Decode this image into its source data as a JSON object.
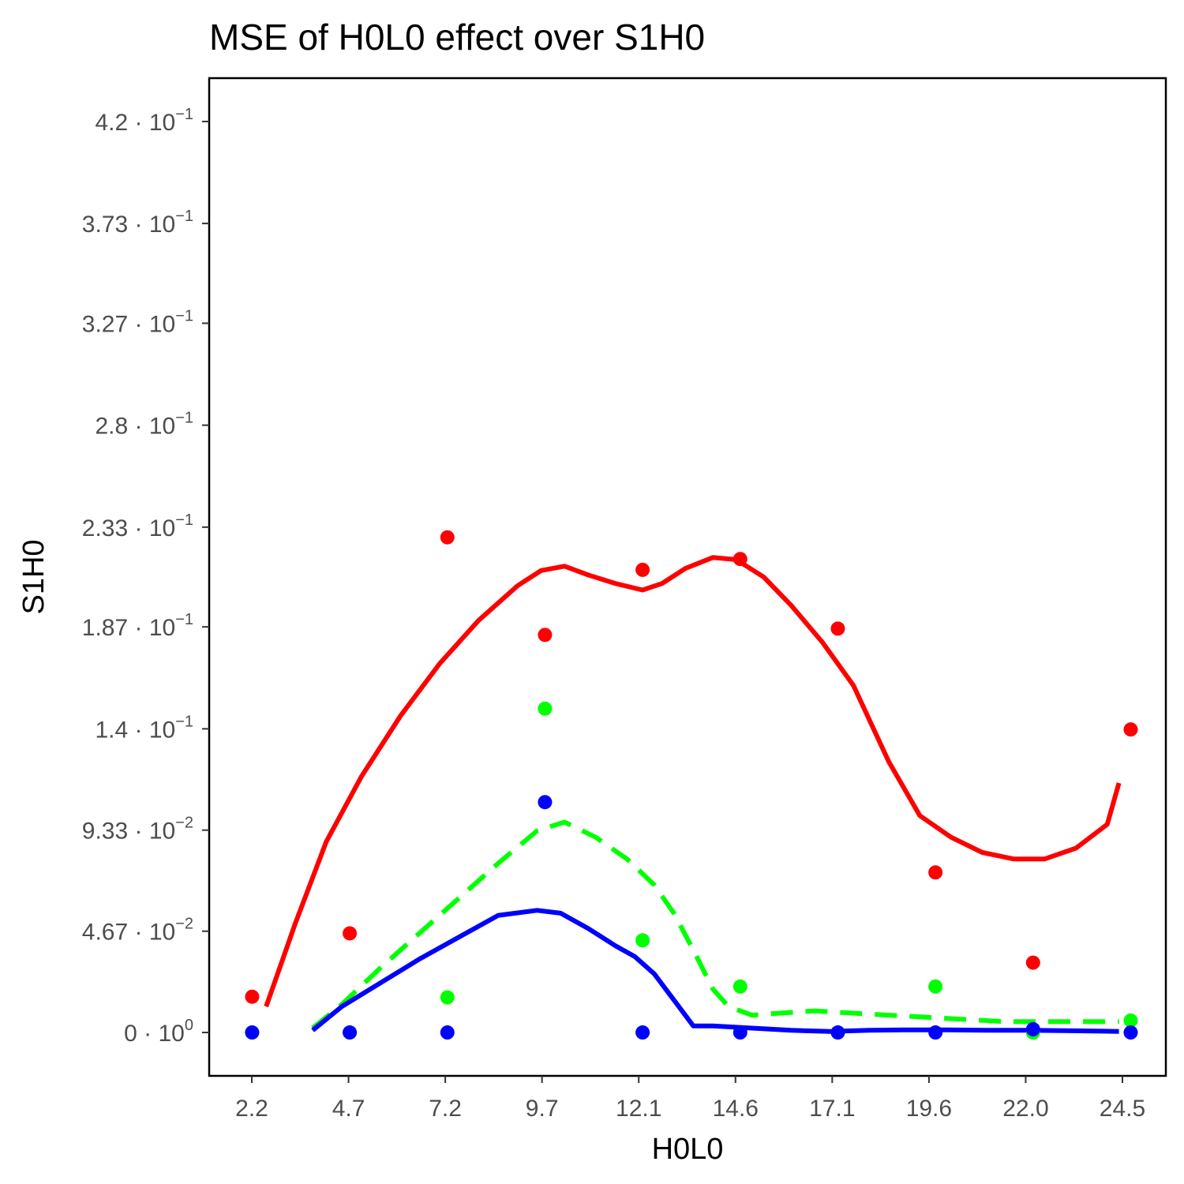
{
  "chart_data": {
    "type": "line",
    "title": "MSE of H0L0 effect over  S1H0",
    "xlabel": "H0L0",
    "ylabel": "S1H0",
    "x_ticks": [
      "2.2",
      "4.7",
      "7.2",
      "9.7",
      "12.1",
      "14.6",
      "17.1",
      "19.6",
      "22.0",
      "24.5"
    ],
    "y_ticks": [
      {
        "value": 0,
        "mantissa": "0",
        "exponent": "0"
      },
      {
        "value": 0.0467,
        "mantissa": "4.67",
        "exponent": "−2"
      },
      {
        "value": 0.0933,
        "mantissa": "9.33",
        "exponent": "−2"
      },
      {
        "value": 0.14,
        "mantissa": "1.4",
        "exponent": "−1"
      },
      {
        "value": 0.187,
        "mantissa": "1.87",
        "exponent": "−1"
      },
      {
        "value": 0.233,
        "mantissa": "2.33",
        "exponent": "−1"
      },
      {
        "value": 0.28,
        "mantissa": "2.8",
        "exponent": "−1"
      },
      {
        "value": 0.327,
        "mantissa": "3.27",
        "exponent": "−1"
      },
      {
        "value": 0.373,
        "mantissa": "3.73",
        "exponent": "−1"
      },
      {
        "value": 0.42,
        "mantissa": "4.2",
        "exponent": "−1"
      }
    ],
    "xlim": [
      1.1,
      25.6
    ],
    "ylim": [
      -0.02,
      0.44
    ],
    "grid": false,
    "series": [
      {
        "color": "#ff0000",
        "line_style": "solid",
        "points": {
          "x": [
            2.2,
            4.7,
            7.2,
            9.7,
            12.2,
            14.7,
            17.2,
            19.7,
            22.2,
            24.7
          ],
          "y": [
            0.0165,
            0.0457,
            0.2283,
            0.1833,
            0.2133,
            0.2183,
            0.1862,
            0.0738,
            0.0322,
            0.1397
          ]
        },
        "curve": {
          "x": [
            2.56,
            3.3,
            4.1,
            5.0,
            6.0,
            7.0,
            8.0,
            9.0,
            9.6,
            10.2,
            10.8,
            11.5,
            12.2,
            12.7,
            13.3,
            14.0,
            14.6,
            15.3,
            16.0,
            16.8,
            17.6,
            18.5,
            19.3,
            20.1,
            20.9,
            21.7,
            22.5,
            23.3,
            24.1,
            24.4
          ],
          "y": [
            0.012,
            0.05,
            0.088,
            0.118,
            0.146,
            0.17,
            0.19,
            0.206,
            0.213,
            0.215,
            0.211,
            0.207,
            0.204,
            0.207,
            0.214,
            0.219,
            0.218,
            0.21,
            0.197,
            0.18,
            0.16,
            0.125,
            0.1,
            0.09,
            0.083,
            0.08,
            0.08,
            0.085,
            0.096,
            0.115
          ]
        }
      },
      {
        "color": "#00ff00",
        "line_style": "dashed",
        "points": {
          "x": [
            2.2,
            4.7,
            7.2,
            9.7,
            12.2,
            14.7,
            17.2,
            19.7,
            22.2,
            24.7
          ],
          "y": [
            0,
            0,
            0.0162,
            0.1493,
            0.0425,
            0.0212,
            0,
            0.0212,
            0,
            0.0055
          ]
        },
        "curve": {
          "x": [
            3.75,
            4.5,
            5.5,
            6.5,
            7.5,
            8.5,
            9.5,
            10.2,
            11.0,
            11.8,
            12.5,
            13.0,
            13.5,
            14.0,
            14.4,
            15.0,
            15.8,
            16.6,
            17.5,
            18.5,
            19.5,
            20.5,
            21.5,
            22.5,
            23.5,
            24.4
          ],
          "y": [
            0.002,
            0.013,
            0.03,
            0.046,
            0.062,
            0.078,
            0.093,
            0.097,
            0.09,
            0.08,
            0.068,
            0.055,
            0.038,
            0.02,
            0.012,
            0.008,
            0.009,
            0.01,
            0.009,
            0.008,
            0.007,
            0.006,
            0.005,
            0.005,
            0.005,
            0.005
          ]
        }
      },
      {
        "color": "#0000ff",
        "line_style": "solid",
        "points": {
          "x": [
            2.2,
            4.7,
            7.2,
            9.7,
            12.2,
            14.7,
            17.2,
            19.7,
            22.2,
            24.7
          ],
          "y": [
            0,
            0,
            0,
            0.1062,
            0,
            0,
            0,
            0,
            0.0015,
            0
          ]
        },
        "curve": {
          "x": [
            3.75,
            4.5,
            5.5,
            6.5,
            7.5,
            8.5,
            9.5,
            10.1,
            10.8,
            11.5,
            12.0,
            12.5,
            13.0,
            13.5,
            14.0,
            15.0,
            16.0,
            17.0,
            18.0,
            19.0,
            20.0,
            21.0,
            22.0,
            23.0,
            24.0,
            24.4
          ],
          "y": [
            0.001,
            0.012,
            0.023,
            0.034,
            0.044,
            0.054,
            0.0563,
            0.055,
            0.048,
            0.04,
            0.035,
            0.027,
            0.015,
            0.003,
            0.003,
            0.002,
            0.001,
            0.0005,
            0.001,
            0.0012,
            0.0012,
            0.001,
            0.001,
            0.0008,
            0.0006,
            0.0005
          ]
        }
      }
    ]
  }
}
